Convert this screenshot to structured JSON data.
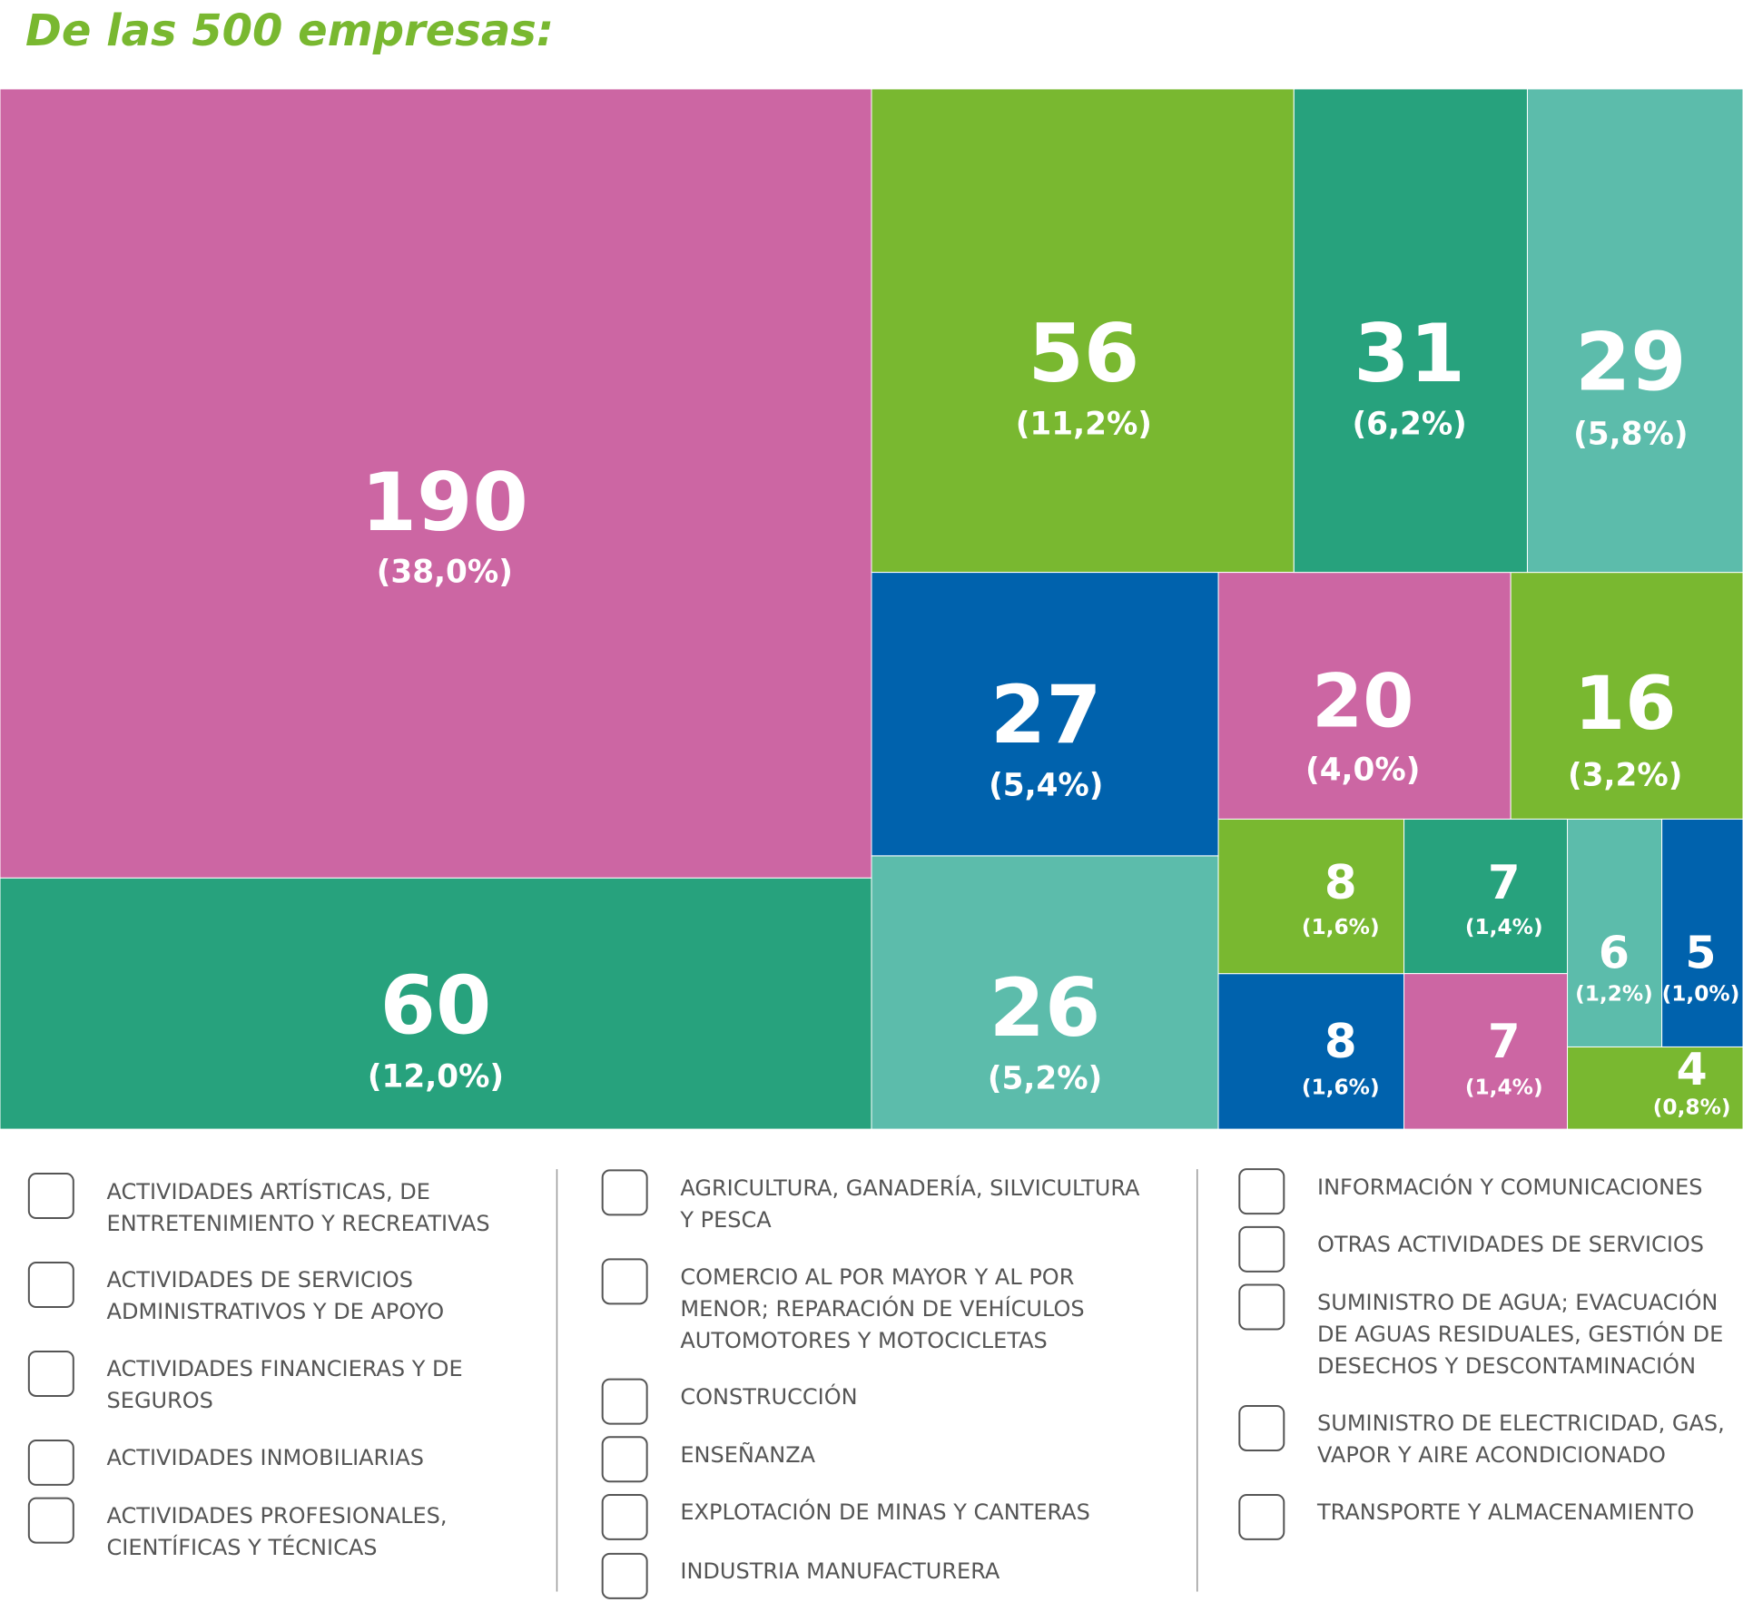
{
  "chart_data": {
    "type": "treemap",
    "title": "De las 500 empresas:",
    "categories": [
      "ACTIVIDADES ARTÍSTICAS, DE ENTRETENIMIENTO Y RECREATIVAS",
      "ACTIVIDADES DE SERVICIOS ADMINISTRATIVOS Y DE APOYO",
      "ACTIVIDADES FINANCIERAS Y DE SEGUROS",
      "ACTIVIDADES INMOBILIARIAS",
      "ACTIVIDADES PROFESIONALES, CIENTÍFICAS Y TÉCNICAS",
      "AGRICULTURA, GANADERÍA, SILVICULTURA Y PESCA",
      "COMERCIO AL POR MAYOR Y AL POR MENOR; REPARACIÓN DE VEHÍCULOS AUTOMOTORES Y MOTOCICLETAS",
      "CONSTRUCCIÓN",
      "ENSEÑANZA",
      "EXPLOTACIÓN DE MINAS Y CANTERAS",
      "INDUSTRIA MANUFACTURERA",
      "INFORMACIÓN Y COMUNICACIONES",
      "OTRAS ACTIVIDADES DE SERVICIOS",
      "SUMINISTRO DE AGUA; EVACUACIÓN DE AGUAS RESIDUALES, GESTIÓN DE DESECHOS Y DESCONTAMINACIÓN",
      "SUMINISTRO DE ELECTRICIDAD, GAS, VAPOR Y AIRE ACONDICIONADO",
      "TRANSPORTE Y ALMACENAMIENTO"
    ],
    "values": [
      56,
      6,
      190,
      16,
      7,
      7,
      20,
      26,
      5,
      4,
      29,
      8,
      8,
      27,
      31,
      60
    ],
    "percents": [
      11.2,
      1.2,
      38.0,
      3.2,
      1.4,
      1.4,
      4.0,
      5.2,
      1.0,
      0.8,
      5.8,
      1.6,
      1.6,
      5.4,
      6.2,
      12.0
    ],
    "percent_labels": [
      "(11,2%)",
      "(1,2%)",
      "(38,0%)",
      "(3,2%)",
      "(1,4%)",
      "(1,4%)",
      "(4,0%)",
      "(5,2%)",
      "(1,0%)",
      "(0,8%)",
      "(5,8%)",
      "(1,6%)",
      "(1,6%)",
      "(5,4%)",
      "(6,2%)",
      "(12,0%)"
    ],
    "colors": [
      "#79b830",
      "#5cbcab",
      "#cc66a3",
      "#79b830",
      "#27a27d",
      "#cc66a3",
      "#cc66a3",
      "#5cbcab",
      "#0062ad",
      "#79b830",
      "#5cbcab",
      "#0062ad",
      "#79b830",
      "#0062ad",
      "#27a27d",
      "#27a27d"
    ]
  }
}
